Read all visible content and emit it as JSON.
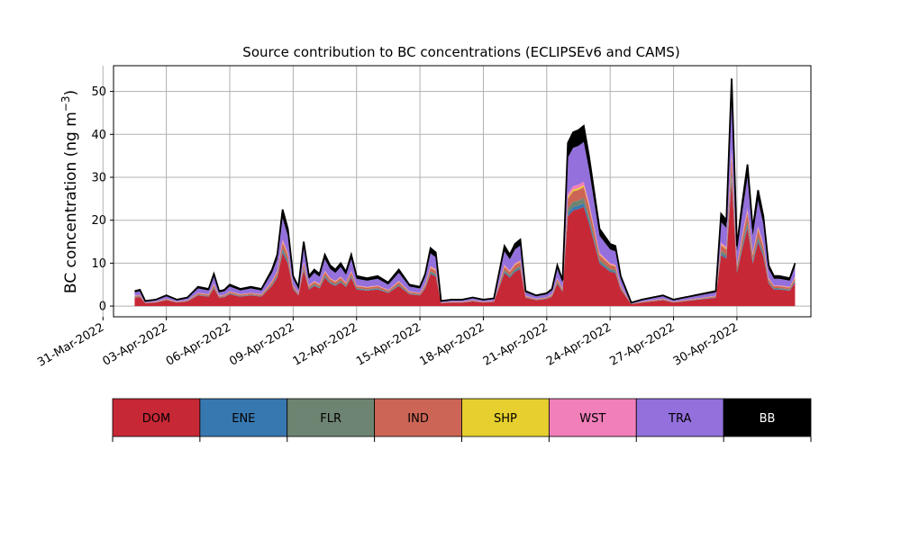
{
  "chart_data": {
    "type": "area",
    "title": "Source contribution to BC concentrations (ECLIPSEv6 and CAMS)",
    "ylabel_main": "BC concentration (ng m",
    "ylabel_sup": "−3",
    "ylabel_close": ")",
    "xlabel": "",
    "ylim": [
      -2.5,
      56
    ],
    "xlim_days_from_start": [
      -0.5,
      32.5
    ],
    "yticks": [
      0,
      10,
      20,
      30,
      40,
      50
    ],
    "xtick_labels": [
      "31-Mar-2022",
      "03-Apr-2022",
      "06-Apr-2022",
      "09-Apr-2022",
      "12-Apr-2022",
      "15-Apr-2022",
      "18-Apr-2022",
      "21-Apr-2022",
      "24-Apr-2022",
      "27-Apr-2022",
      "30-Apr-2022"
    ],
    "grid": true,
    "legend_position": "below",
    "x": [
      "01-Apr-2022 12:00",
      "01-Apr-2022 18:00",
      "02-Apr-2022 00:00",
      "02-Apr-2022 12:00",
      "03-Apr-2022 00:00",
      "03-Apr-2022 12:00",
      "04-Apr-2022 00:00",
      "04-Apr-2022 12:00",
      "05-Apr-2022 00:00",
      "05-Apr-2022 06:00",
      "05-Apr-2022 12:00",
      "05-Apr-2022 18:00",
      "06-Apr-2022 00:00",
      "06-Apr-2022 12:00",
      "07-Apr-2022 00:00",
      "07-Apr-2022 12:00",
      "08-Apr-2022 00:00",
      "08-Apr-2022 06:00",
      "08-Apr-2022 12:00",
      "08-Apr-2022 18:00",
      "09-Apr-2022 00:00",
      "09-Apr-2022 06:00",
      "09-Apr-2022 12:00",
      "09-Apr-2022 18:00",
      "10-Apr-2022 00:00",
      "10-Apr-2022 06:00",
      "10-Apr-2022 12:00",
      "10-Apr-2022 18:00",
      "11-Apr-2022 00:00",
      "11-Apr-2022 06:00",
      "11-Apr-2022 12:00",
      "11-Apr-2022 18:00",
      "12-Apr-2022 00:00",
      "12-Apr-2022 12:00",
      "13-Apr-2022 00:00",
      "13-Apr-2022 12:00",
      "14-Apr-2022 00:00",
      "14-Apr-2022 12:00",
      "15-Apr-2022 00:00",
      "15-Apr-2022 06:00",
      "15-Apr-2022 12:00",
      "15-Apr-2022 18:00",
      "16-Apr-2022 00:00",
      "16-Apr-2022 12:00",
      "17-Apr-2022 00:00",
      "17-Apr-2022 12:00",
      "18-Apr-2022 00:00",
      "18-Apr-2022 12:00",
      "19-Apr-2022 00:00",
      "19-Apr-2022 06:00",
      "19-Apr-2022 12:00",
      "19-Apr-2022 18:00",
      "20-Apr-2022 00:00",
      "20-Apr-2022 12:00",
      "21-Apr-2022 00:00",
      "21-Apr-2022 06:00",
      "21-Apr-2022 12:00",
      "21-Apr-2022 18:00",
      "22-Apr-2022 00:00",
      "22-Apr-2022 06:00",
      "22-Apr-2022 12:00",
      "22-Apr-2022 18:00",
      "23-Apr-2022 00:00",
      "23-Apr-2022 12:00",
      "24-Apr-2022 00:00",
      "24-Apr-2022 06:00",
      "24-Apr-2022 12:00",
      "25-Apr-2022 00:00",
      "25-Apr-2022 12:00",
      "26-Apr-2022 00:00",
      "26-Apr-2022 12:00",
      "27-Apr-2022 00:00",
      "27-Apr-2022 12:00",
      "28-Apr-2022 00:00",
      "28-Apr-2022 12:00",
      "29-Apr-2022 00:00",
      "29-Apr-2022 06:00",
      "29-Apr-2022 12:00",
      "29-Apr-2022 18:00",
      "30-Apr-2022 00:00",
      "30-Apr-2022 06:00",
      "30-Apr-2022 12:00",
      "30-Apr-2022 18:00",
      "01-May-2022 00:00",
      "01-May-2022 06:00",
      "01-May-2022 12:00",
      "01-May-2022 18:00",
      "02-May-2022 00:00",
      "02-May-2022 12:00",
      "02-May-2022 18:00"
    ],
    "total": [
      3.5,
      3.8,
      1.2,
      1.5,
      2.5,
      1.5,
      2.0,
      4.5,
      4.0,
      7.5,
      3.5,
      3.8,
      5.0,
      4.0,
      4.5,
      4.0,
      8.5,
      12.0,
      22.5,
      18.0,
      7.0,
      4.5,
      15.0,
      7.0,
      8.5,
      7.5,
      12.0,
      9.5,
      8.5,
      10.0,
      8.0,
      12.0,
      7.0,
      6.5,
      7.0,
      5.5,
      8.5,
      5.0,
      4.5,
      7.5,
      13.5,
      12.5,
      1.2,
      1.5,
      1.5,
      2.0,
      1.5,
      1.8,
      14.0,
      12.0,
      14.5,
      15.5,
      3.5,
      2.5,
      3.0,
      4.0,
      9.5,
      6.0,
      38.0,
      40.5,
      41.0,
      42.0,
      35.0,
      18.0,
      14.5,
      14.0,
      7.0,
      0.8,
      1.5,
      2.0,
      2.5,
      1.5,
      2.0,
      2.5,
      3.0,
      3.5,
      21.5,
      20.0,
      53.0,
      14.0,
      24.0,
      33.0,
      18.0,
      27.0,
      21.0,
      9.5,
      7.0,
      7.0,
      6.5,
      10.0
    ],
    "series": [
      {
        "name": "DOM",
        "color": "#c72836",
        "fractions": [
          0.55,
          0.55,
          0.55,
          0.55,
          0.55,
          0.55,
          0.55,
          0.55,
          0.55,
          0.55,
          0.55,
          0.55,
          0.55,
          0.55,
          0.55,
          0.55,
          0.55,
          0.55,
          0.55,
          0.55,
          0.55,
          0.55,
          0.55,
          0.55,
          0.55,
          0.55,
          0.55,
          0.55,
          0.55,
          0.55,
          0.55,
          0.55,
          0.55,
          0.55,
          0.55,
          0.55,
          0.55,
          0.55,
          0.55,
          0.55,
          0.55,
          0.55,
          0.55,
          0.55,
          0.55,
          0.55,
          0.55,
          0.55,
          0.55,
          0.55,
          0.55,
          0.55,
          0.55,
          0.55,
          0.55,
          0.55,
          0.55,
          0.55,
          0.55,
          0.55,
          0.55,
          0.55,
          0.55,
          0.55,
          0.55,
          0.55,
          0.55,
          0.55,
          0.55,
          0.55,
          0.55,
          0.55,
          0.55,
          0.55,
          0.55,
          0.55,
          0.55,
          0.55,
          0.55,
          0.55,
          0.55,
          0.55,
          0.55,
          0.55,
          0.55,
          0.55,
          0.55,
          0.55,
          0.55,
          0.55
        ]
      },
      {
        "name": "ENE",
        "color": "#3878b0",
        "fractions": [
          0.02,
          0.02,
          0.02,
          0.02,
          0.02,
          0.02,
          0.02,
          0.02,
          0.02,
          0.02,
          0.02,
          0.02,
          0.02,
          0.02,
          0.02,
          0.02,
          0.02,
          0.02,
          0.02,
          0.02,
          0.02,
          0.02,
          0.02,
          0.02,
          0.02,
          0.02,
          0.02,
          0.02,
          0.02,
          0.02,
          0.02,
          0.02,
          0.02,
          0.02,
          0.02,
          0.02,
          0.02,
          0.02,
          0.02,
          0.02,
          0.02,
          0.02,
          0.02,
          0.02,
          0.02,
          0.02,
          0.02,
          0.02,
          0.02,
          0.02,
          0.02,
          0.02,
          0.02,
          0.02,
          0.02,
          0.02,
          0.02,
          0.02,
          0.02,
          0.02,
          0.02,
          0.02,
          0.02,
          0.02,
          0.02,
          0.02,
          0.02,
          0.02,
          0.02,
          0.02,
          0.02,
          0.02,
          0.02,
          0.02,
          0.02,
          0.02,
          0.02,
          0.02,
          0.02,
          0.02,
          0.02,
          0.02,
          0.02,
          0.02,
          0.02,
          0.02,
          0.02,
          0.02,
          0.02,
          0.02
        ]
      },
      {
        "name": "FLR",
        "color": "#6e8472",
        "fractions": [
          0.03,
          0.03,
          0.03,
          0.03,
          0.03,
          0.03,
          0.03,
          0.03,
          0.03,
          0.03,
          0.03,
          0.03,
          0.03,
          0.03,
          0.03,
          0.03,
          0.03,
          0.03,
          0.03,
          0.03,
          0.03,
          0.03,
          0.03,
          0.03,
          0.03,
          0.03,
          0.03,
          0.03,
          0.03,
          0.03,
          0.03,
          0.03,
          0.03,
          0.03,
          0.03,
          0.03,
          0.03,
          0.03,
          0.03,
          0.03,
          0.03,
          0.03,
          0.03,
          0.03,
          0.03,
          0.03,
          0.03,
          0.03,
          0.03,
          0.03,
          0.03,
          0.03,
          0.03,
          0.03,
          0.03,
          0.03,
          0.03,
          0.03,
          0.03,
          0.03,
          0.03,
          0.03,
          0.03,
          0.03,
          0.03,
          0.03,
          0.03,
          0.03,
          0.03,
          0.03,
          0.03,
          0.03,
          0.03,
          0.03,
          0.03,
          0.03,
          0.03,
          0.03,
          0.03,
          0.03,
          0.03,
          0.03,
          0.03,
          0.03,
          0.03,
          0.03,
          0.03,
          0.03,
          0.03,
          0.03
        ]
      },
      {
        "name": "IND",
        "color": "#cc6555",
        "fractions": [
          0.06,
          0.06,
          0.06,
          0.06,
          0.06,
          0.06,
          0.06,
          0.06,
          0.06,
          0.06,
          0.06,
          0.06,
          0.06,
          0.06,
          0.06,
          0.06,
          0.06,
          0.06,
          0.06,
          0.06,
          0.06,
          0.06,
          0.06,
          0.06,
          0.06,
          0.06,
          0.06,
          0.06,
          0.06,
          0.06,
          0.06,
          0.06,
          0.06,
          0.06,
          0.06,
          0.06,
          0.06,
          0.06,
          0.06,
          0.06,
          0.06,
          0.06,
          0.06,
          0.06,
          0.06,
          0.06,
          0.06,
          0.06,
          0.06,
          0.06,
          0.06,
          0.06,
          0.06,
          0.06,
          0.06,
          0.06,
          0.06,
          0.06,
          0.06,
          0.06,
          0.06,
          0.06,
          0.06,
          0.06,
          0.06,
          0.06,
          0.06,
          0.06,
          0.06,
          0.06,
          0.06,
          0.06,
          0.06,
          0.06,
          0.06,
          0.06,
          0.06,
          0.06,
          0.06,
          0.06,
          0.06,
          0.06,
          0.06,
          0.06,
          0.06,
          0.06,
          0.06,
          0.06,
          0.06,
          0.06
        ]
      },
      {
        "name": "SHP",
        "color": "#e6cf2e",
        "fractions": [
          0.01,
          0.01,
          0.01,
          0.01,
          0.01,
          0.01,
          0.01,
          0.01,
          0.01,
          0.01,
          0.01,
          0.01,
          0.01,
          0.01,
          0.01,
          0.01,
          0.01,
          0.01,
          0.01,
          0.01,
          0.01,
          0.01,
          0.01,
          0.01,
          0.01,
          0.01,
          0.01,
          0.01,
          0.01,
          0.01,
          0.01,
          0.01,
          0.01,
          0.01,
          0.01,
          0.01,
          0.01,
          0.01,
          0.01,
          0.01,
          0.01,
          0.01,
          0.01,
          0.01,
          0.01,
          0.01,
          0.01,
          0.01,
          0.01,
          0.01,
          0.01,
          0.01,
          0.01,
          0.01,
          0.01,
          0.01,
          0.01,
          0.01,
          0.01,
          0.01,
          0.01,
          0.01,
          0.01,
          0.01,
          0.01,
          0.01,
          0.01,
          0.01,
          0.01,
          0.01,
          0.01,
          0.01,
          0.01,
          0.01,
          0.01,
          0.01,
          0.01,
          0.01,
          0.01,
          0.01,
          0.01,
          0.01,
          0.01,
          0.01,
          0.01,
          0.01,
          0.01,
          0.01,
          0.01,
          0.01
        ]
      },
      {
        "name": "WST",
        "color": "#f17fb9",
        "fractions": [
          0.02,
          0.02,
          0.02,
          0.02,
          0.02,
          0.02,
          0.02,
          0.02,
          0.02,
          0.02,
          0.02,
          0.02,
          0.02,
          0.02,
          0.02,
          0.02,
          0.02,
          0.02,
          0.02,
          0.02,
          0.02,
          0.02,
          0.02,
          0.02,
          0.02,
          0.02,
          0.02,
          0.02,
          0.02,
          0.02,
          0.02,
          0.02,
          0.02,
          0.02,
          0.02,
          0.02,
          0.02,
          0.02,
          0.02,
          0.02,
          0.02,
          0.02,
          0.02,
          0.02,
          0.02,
          0.02,
          0.02,
          0.02,
          0.02,
          0.02,
          0.02,
          0.02,
          0.02,
          0.02,
          0.02,
          0.02,
          0.02,
          0.02,
          0.02,
          0.02,
          0.02,
          0.02,
          0.02,
          0.02,
          0.02,
          0.02,
          0.02,
          0.02,
          0.02,
          0.02,
          0.02,
          0.02,
          0.02,
          0.02,
          0.02,
          0.02,
          0.02,
          0.02,
          0.02,
          0.02,
          0.02,
          0.02,
          0.02,
          0.02,
          0.02,
          0.02,
          0.02,
          0.02,
          0.02,
          0.02
        ]
      },
      {
        "name": "TRA",
        "color": "#9370db",
        "fractions": [
          0.22,
          0.22,
          0.22,
          0.22,
          0.22,
          0.22,
          0.22,
          0.22,
          0.22,
          0.22,
          0.22,
          0.22,
          0.22,
          0.22,
          0.22,
          0.22,
          0.22,
          0.22,
          0.22,
          0.22,
          0.22,
          0.22,
          0.22,
          0.22,
          0.22,
          0.22,
          0.22,
          0.22,
          0.22,
          0.22,
          0.22,
          0.22,
          0.22,
          0.22,
          0.22,
          0.22,
          0.22,
          0.22,
          0.22,
          0.22,
          0.22,
          0.22,
          0.22,
          0.22,
          0.22,
          0.22,
          0.22,
          0.22,
          0.22,
          0.22,
          0.22,
          0.22,
          0.22,
          0.22,
          0.22,
          0.22,
          0.22,
          0.22,
          0.22,
          0.22,
          0.22,
          0.22,
          0.22,
          0.22,
          0.22,
          0.22,
          0.22,
          0.22,
          0.22,
          0.22,
          0.22,
          0.22,
          0.22,
          0.22,
          0.22,
          0.22,
          0.22,
          0.22,
          0.22,
          0.22,
          0.22,
          0.22,
          0.22,
          0.22,
          0.22,
          0.22,
          0.22,
          0.22,
          0.22,
          0.22
        ]
      },
      {
        "name": "BB",
        "color": "#000000",
        "fractions": [
          0.09,
          0.09,
          0.09,
          0.09,
          0.09,
          0.09,
          0.09,
          0.09,
          0.09,
          0.09,
          0.09,
          0.09,
          0.09,
          0.09,
          0.09,
          0.09,
          0.09,
          0.09,
          0.09,
          0.09,
          0.09,
          0.09,
          0.09,
          0.09,
          0.09,
          0.09,
          0.09,
          0.09,
          0.09,
          0.09,
          0.09,
          0.09,
          0.09,
          0.09,
          0.09,
          0.09,
          0.09,
          0.09,
          0.09,
          0.09,
          0.09,
          0.09,
          0.09,
          0.09,
          0.09,
          0.09,
          0.09,
          0.09,
          0.09,
          0.09,
          0.09,
          0.09,
          0.09,
          0.09,
          0.09,
          0.09,
          0.09,
          0.09,
          0.09,
          0.09,
          0.09,
          0.09,
          0.09,
          0.09,
          0.09,
          0.09,
          0.09,
          0.09,
          0.09,
          0.09,
          0.09,
          0.09,
          0.09,
          0.09,
          0.09,
          0.09,
          0.09,
          0.09,
          0.09,
          0.09,
          0.09,
          0.09,
          0.09,
          0.09,
          0.09,
          0.09,
          0.09,
          0.09,
          0.09,
          0.09
        ]
      }
    ],
    "legend": [
      {
        "label": "DOM",
        "color": "#c72836",
        "text_color": "#000000"
      },
      {
        "label": "ENE",
        "color": "#3878b0",
        "text_color": "#000000"
      },
      {
        "label": "FLR",
        "color": "#6e8472",
        "text_color": "#000000"
      },
      {
        "label": "IND",
        "color": "#cc6555",
        "text_color": "#000000"
      },
      {
        "label": "SHP",
        "color": "#e6cf2e",
        "text_color": "#000000"
      },
      {
        "label": "WST",
        "color": "#f17fb9",
        "text_color": "#000000"
      },
      {
        "label": "TRA",
        "color": "#9370db",
        "text_color": "#000000"
      },
      {
        "label": "BB",
        "color": "#000000",
        "text_color": "#ffffff"
      }
    ]
  }
}
